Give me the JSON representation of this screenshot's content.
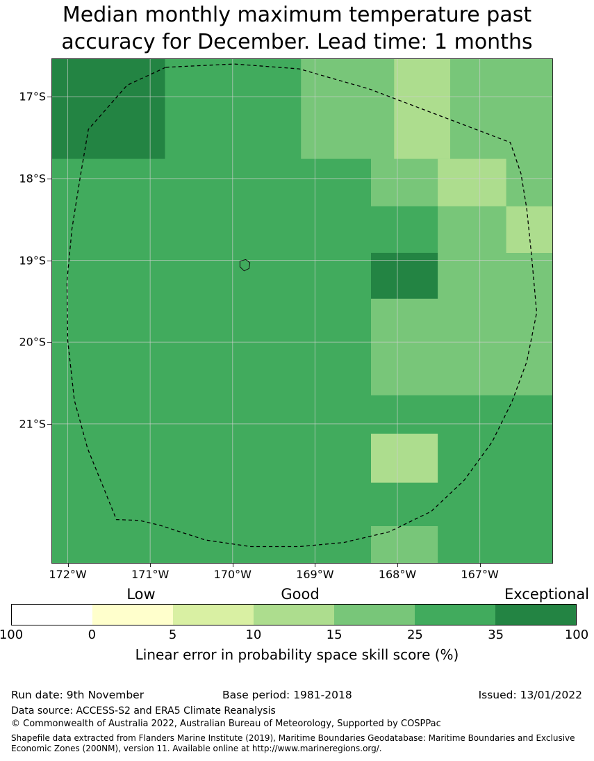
{
  "title": {
    "line1": "Median monthly maximum temperature past",
    "line2": "accuracy for December. Lead time: 1 months"
  },
  "chart_data": {
    "type": "heatmap",
    "subtype": "geographic skill-score map",
    "title": "Median monthly maximum temperature past accuracy for December. Lead time: 1 months",
    "xlim": [
      -172.19,
      -166.12
    ],
    "ylim": [
      -22.7,
      -16.54
    ],
    "grid_on": true,
    "grid_color": "#d0d0d0",
    "x_ticks": [
      {
        "value": -172,
        "label": "172°W"
      },
      {
        "value": -171,
        "label": "171°W"
      },
      {
        "value": -170,
        "label": "170°W"
      },
      {
        "value": -169,
        "label": "169°W"
      },
      {
        "value": -168,
        "label": "168°W"
      },
      {
        "value": -167,
        "label": "167°W"
      }
    ],
    "y_ticks": [
      {
        "value": -17,
        "label": "17°S"
      },
      {
        "value": -18,
        "label": "18°S"
      },
      {
        "value": -19,
        "label": "19°S"
      },
      {
        "value": -20,
        "label": "20°S"
      },
      {
        "value": -21,
        "label": "21°S"
      }
    ],
    "levels": {
      "35-100": {
        "color": "#238443",
        "label": "35-100"
      },
      "25-35": {
        "color": "#41ab5d",
        "label": "25-35"
      },
      "15-25": {
        "color": "#78c679",
        "label": "15-25"
      },
      "10-15": {
        "color": "#addd8e",
        "label": "10-15"
      }
    },
    "base_level": "25-35",
    "cells": [
      {
        "lon": [
          -172.19,
          -170.82
        ],
        "lat": [
          -17.76,
          -16.54
        ],
        "level": "35-100"
      },
      {
        "lon": [
          -169.17,
          -168.32
        ],
        "lat": [
          -17.76,
          -16.54
        ],
        "level": "15-25"
      },
      {
        "lon": [
          -168.32,
          -166.12
        ],
        "lat": [
          -18.34,
          -16.54
        ],
        "level": "15-25"
      },
      {
        "lon": [
          -168.04,
          -167.36
        ],
        "lat": [
          -17.76,
          -16.54
        ],
        "level": "10-15"
      },
      {
        "lon": [
          -167.51,
          -166.68
        ],
        "lat": [
          -18.34,
          -17.76
        ],
        "level": "10-15"
      },
      {
        "lon": [
          -168.32,
          -166.12
        ],
        "lat": [
          -20.65,
          -18.34
        ],
        "level": "15-25"
      },
      {
        "lon": [
          -168.32,
          -167.51
        ],
        "lat": [
          -18.91,
          -18.34
        ],
        "level": "25-35"
      },
      {
        "lon": [
          -168.32,
          -167.51
        ],
        "lat": [
          -19.47,
          -18.91
        ],
        "level": "35-100"
      },
      {
        "lon": [
          -166.68,
          -166.12
        ],
        "lat": [
          -18.91,
          -18.34
        ],
        "level": "10-15"
      },
      {
        "lon": [
          -168.32,
          -167.51
        ],
        "lat": [
          -21.72,
          -21.12
        ],
        "level": "10-15"
      },
      {
        "lon": [
          -168.32,
          -167.51
        ],
        "lat": [
          -22.7,
          -22.25
        ],
        "level": "15-25"
      }
    ],
    "eez_boundary": [
      [
        -170.81,
        -16.64
      ],
      [
        -169.98,
        -16.6
      ],
      [
        -169.19,
        -16.66
      ],
      [
        -168.33,
        -16.91
      ],
      [
        -166.63,
        -17.56
      ],
      [
        -166.5,
        -17.94
      ],
      [
        -166.43,
        -18.37
      ],
      [
        -166.37,
        -18.96
      ],
      [
        -166.31,
        -19.64
      ],
      [
        -166.43,
        -20.24
      ],
      [
        -166.61,
        -20.73
      ],
      [
        -166.85,
        -21.22
      ],
      [
        -167.19,
        -21.69
      ],
      [
        -167.59,
        -22.07
      ],
      [
        -168.1,
        -22.32
      ],
      [
        -168.65,
        -22.45
      ],
      [
        -169.19,
        -22.5
      ],
      [
        -169.78,
        -22.5
      ],
      [
        -170.33,
        -22.42
      ],
      [
        -170.88,
        -22.24
      ],
      [
        -171.13,
        -22.18
      ],
      [
        -171.41,
        -22.17
      ],
      [
        -171.55,
        -21.82
      ],
      [
        -171.76,
        -21.3
      ],
      [
        -171.92,
        -20.71
      ],
      [
        -172.0,
        -19.98
      ],
      [
        -172.01,
        -19.26
      ],
      [
        -171.95,
        -18.62
      ],
      [
        -171.85,
        -17.99
      ],
      [
        -171.75,
        -17.4
      ],
      [
        -171.28,
        -16.86
      ]
    ],
    "island": [
      [
        -169.91,
        -19.01
      ],
      [
        -169.84,
        -18.99
      ],
      [
        -169.79,
        -19.03
      ],
      [
        -169.8,
        -19.1
      ],
      [
        -169.86,
        -19.13
      ],
      [
        -169.91,
        -19.08
      ]
    ],
    "colorbar": {
      "title": "Linear error in probability space skill score (%)",
      "qualitative_labels": [
        "Low",
        "Good",
        "Exceptional"
      ],
      "tick_labels": [
        "100",
        "0",
        "5",
        "10",
        "15",
        "25",
        "35",
        "100"
      ],
      "segment_colors": [
        "#ffffff",
        "#ffffcc",
        "#d9f0a3",
        "#addd8e",
        "#78c679",
        "#41ab5d",
        "#238443"
      ]
    }
  },
  "footer": {
    "run_date": "Run date: 9th November",
    "base_period": "Base period: 1981-2018",
    "issued": "Issued: 13/01/2022",
    "data_source": "Data source: ACCESS-S2 and ERA5 Climate Reanalysis",
    "copyright": "© Commonwealth of Australia 2022, Australian Bureau of Meteorology, Supported by COSPPac",
    "shapefile_line1": "Shapefile data extracted from Flanders Marine Institute (2019), Maritime Boundaries Geodatabase: Maritime Boundaries and Exclusive",
    "shapefile_line2": "Economic Zones (200NM), version 11. Available online at http://www.marineregions.org/."
  }
}
